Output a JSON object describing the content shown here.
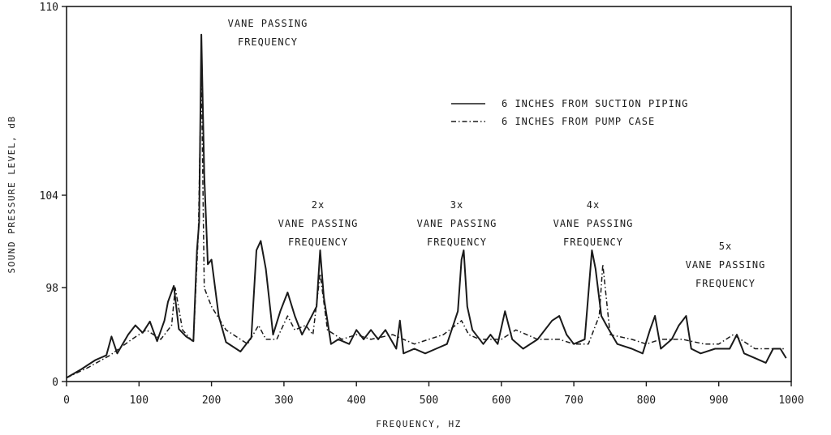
{
  "chart_data": {
    "type": "line",
    "xlabel": "FREQUENCY, HZ",
    "ylabel": "SOUND PRESSURE LEVEL, dB",
    "xlim": [
      0,
      1000
    ],
    "y_ticks": [
      {
        "value": 0,
        "label": "0"
      },
      {
        "value": 98,
        "label": "98"
      },
      {
        "value": 104,
        "label": "104"
      },
      {
        "value": 110,
        "label": "110"
      }
    ],
    "x_ticks": [
      {
        "value": 0,
        "label": "0"
      },
      {
        "value": 100,
        "label": "100"
      },
      {
        "value": 200,
        "label": "200"
      },
      {
        "value": 300,
        "label": "300"
      },
      {
        "value": 400,
        "label": "400"
      },
      {
        "value": 500,
        "label": "500"
      },
      {
        "value": 600,
        "label": "600"
      },
      {
        "value": 700,
        "label": "700"
      },
      {
        "value": 800,
        "label": "800"
      },
      {
        "value": 900,
        "label": "900"
      },
      {
        "value": 1000,
        "label": "1000"
      }
    ],
    "grid": false,
    "legend_position": "top-right",
    "series": [
      {
        "name": "6 INCHES FROM SUCTION PIPING",
        "style": "solid",
        "color": "#1a1a1a",
        "x": [
          0,
          20,
          40,
          55,
          62,
          70,
          85,
          95,
          105,
          115,
          125,
          135,
          140,
          148,
          155,
          165,
          175,
          180,
          183,
          186,
          190,
          195,
          200,
          210,
          220,
          240,
          255,
          262,
          268,
          275,
          285,
          295,
          305,
          315,
          325,
          335,
          345,
          350,
          355,
          365,
          375,
          390,
          400,
          410,
          420,
          430,
          440,
          455,
          460,
          465,
          480,
          495,
          510,
          525,
          540,
          545,
          548,
          553,
          560,
          575,
          585,
          595,
          605,
          615,
          630,
          650,
          670,
          680,
          690,
          700,
          715,
          725,
          730,
          738,
          745,
          760,
          780,
          795,
          805,
          812,
          820,
          835,
          845,
          855,
          862,
          875,
          895,
          915,
          925,
          935,
          950,
          965,
          975,
          985,
          993
        ],
        "y": [
          0.4,
          1.3,
          2.3,
          2.8,
          4.8,
          3.0,
          5.0,
          6.0,
          5.2,
          6.4,
          4.3,
          6.5,
          8.5,
          10.2,
          5.6,
          4.8,
          4.3,
          14.0,
          17.0,
          37.0,
          22.0,
          12.5,
          13.0,
          7.0,
          4.2,
          3.2,
          4.7,
          14.0,
          15.0,
          12.0,
          5.0,
          7.5,
          9.5,
          7.0,
          5.0,
          6.5,
          8.0,
          14.0,
          9.0,
          4.0,
          4.5,
          4.0,
          5.5,
          4.5,
          5.5,
          4.5,
          5.5,
          3.5,
          6.5,
          3.0,
          3.5,
          3.0,
          3.5,
          4.0,
          7.5,
          13.0,
          14.0,
          8.0,
          5.5,
          4.0,
          5.0,
          4.0,
          7.5,
          4.5,
          3.5,
          4.5,
          6.5,
          7.0,
          5.0,
          4.0,
          4.5,
          14.0,
          12.0,
          7.0,
          6.0,
          4.0,
          3.5,
          3.0,
          5.5,
          7.0,
          3.5,
          4.5,
          6.0,
          7.0,
          3.5,
          3.0,
          3.5,
          3.5,
          5.0,
          3.0,
          2.5,
          2.0,
          3.5,
          3.5,
          2.5
        ]
      },
      {
        "name": "6 INCHES FROM PUMP CASE",
        "style": "dash-dot",
        "color": "#1a1a1a",
        "x": [
          0,
          30,
          60,
          90,
          110,
          130,
          145,
          150,
          160,
          175,
          182,
          186,
          190,
          200,
          220,
          250,
          265,
          275,
          290,
          305,
          315,
          330,
          340,
          350,
          360,
          380,
          400,
          420,
          450,
          480,
          500,
          520,
          545,
          555,
          570,
          600,
          620,
          650,
          680,
          700,
          720,
          735,
          740,
          750,
          780,
          800,
          820,
          850,
          880,
          900,
          920,
          950,
          990
        ],
        "y": [
          0.4,
          1.5,
          2.8,
          4.5,
          5.5,
          4.5,
          6.0,
          10.0,
          5.5,
          4.2,
          16.0,
          33.5,
          10.0,
          8.0,
          5.5,
          4.0,
          6.0,
          4.5,
          4.5,
          7.0,
          5.5,
          6.0,
          5.0,
          11.5,
          5.5,
          4.5,
          5.0,
          4.5,
          5.0,
          4.0,
          4.5,
          5.0,
          6.5,
          5.0,
          4.5,
          4.5,
          5.5,
          4.5,
          4.5,
          4.0,
          4.0,
          7.0,
          12.5,
          5.0,
          4.5,
          4.0,
          4.5,
          4.5,
          4.0,
          4.0,
          5.0,
          3.5,
          3.5
        ]
      }
    ],
    "annotations": [
      {
        "x": 185,
        "lines": [
          "VANE PASSING",
          "FREQUENCY"
        ]
      },
      {
        "x": 345,
        "lines": [
          "2x",
          "VANE PASSING",
          "FREQUENCY"
        ]
      },
      {
        "x": 548,
        "lines": [
          "3x",
          "VANE PASSING",
          "FREQUENCY"
        ]
      },
      {
        "x": 728,
        "lines": [
          "4x",
          "VANE PASSING",
          "FREQUENCY"
        ]
      },
      {
        "x": 858,
        "lines": [
          "5x",
          "VANE PASSING",
          "FREQUENCY"
        ]
      }
    ]
  }
}
